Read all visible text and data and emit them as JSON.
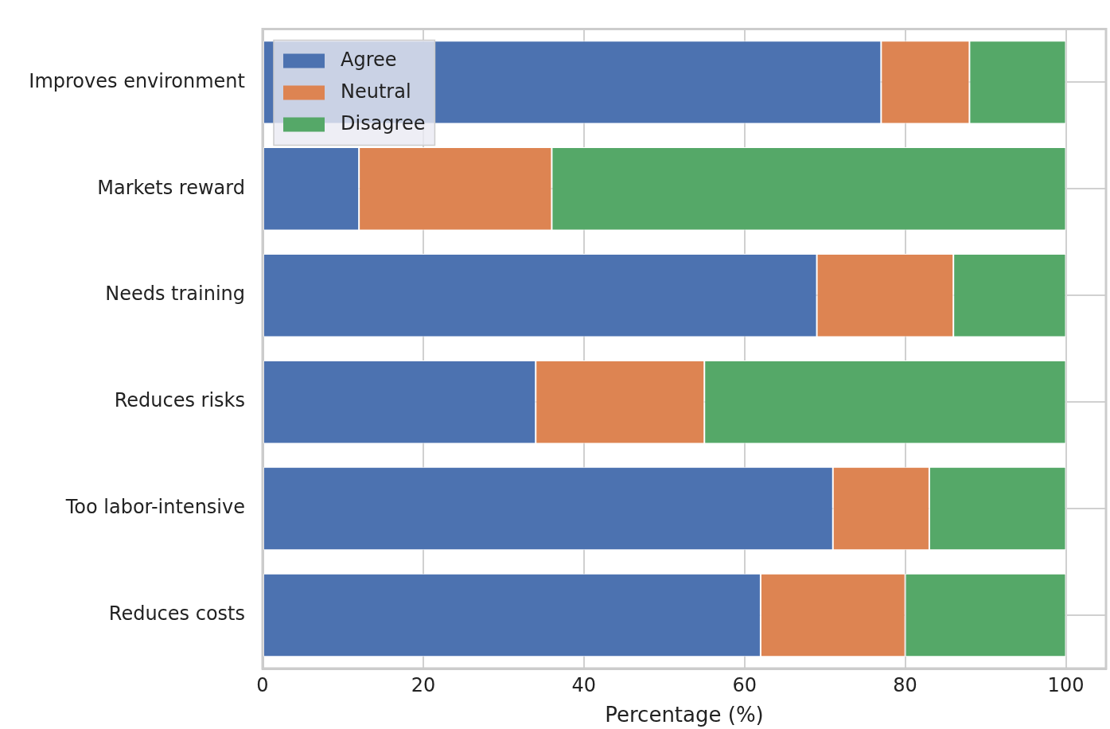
{
  "chart_data": {
    "type": "bar",
    "orientation": "horizontal",
    "stacked": true,
    "xlabel": "Percentage (%)",
    "categories": [
      "Improves environment",
      "Markets reward",
      "Needs training",
      "Reduces risks",
      "Too labor-intensive",
      "Reduces costs"
    ],
    "series": [
      {
        "name": "Agree",
        "color": "#4c72b0",
        "values": [
          77,
          12,
          69,
          34,
          71,
          62
        ]
      },
      {
        "name": "Neutral",
        "color": "#dd8452",
        "values": [
          11,
          24,
          17,
          21,
          12,
          18
        ]
      },
      {
        "name": "Disagree",
        "color": "#55a868",
        "values": [
          12,
          64,
          14,
          45,
          17,
          20
        ]
      }
    ],
    "xlim": [
      0,
      105
    ],
    "xticks": [
      0,
      20,
      40,
      60,
      80,
      100
    ],
    "grid": true,
    "legend": "top left"
  }
}
